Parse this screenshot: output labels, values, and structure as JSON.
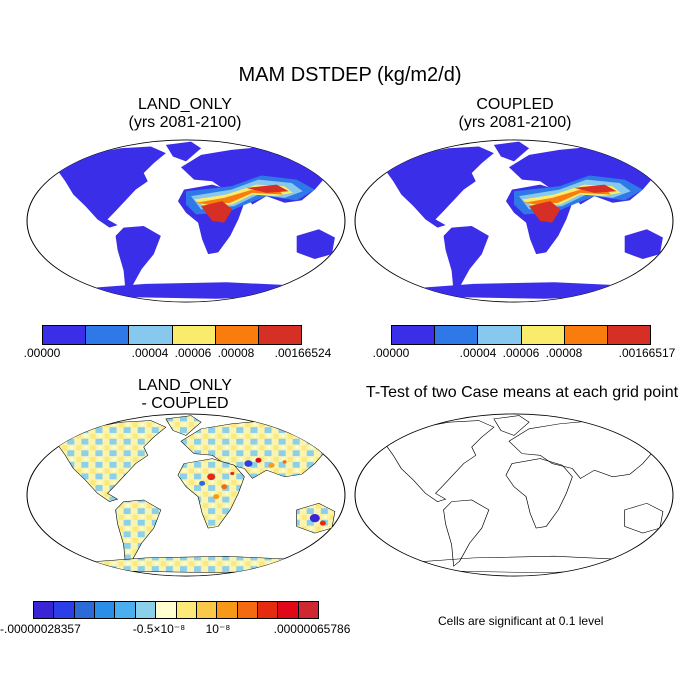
{
  "main_title": "MAM DSTDEP (kg/m2/d)",
  "panels": [
    {
      "title1": "LAND_ONLY",
      "title2": "(yrs 2081-2100)"
    },
    {
      "title1": "COUPLED",
      "title2": "(yrs 2081-2100)"
    },
    {
      "title1": "LAND_ONLY",
      "title2": "- COUPLED"
    },
    {
      "title1": "T-Test of two Case means at each grid point"
    }
  ],
  "colorbar1": {
    "colors": [
      "#3b2ee8",
      "#2f78e8",
      "#86c8ee",
      "#f9ec6c",
      "#f97c0c",
      "#d62f26"
    ],
    "labels": [
      ".00000",
      ".00004",
      ".00006",
      ".00008",
      ".00166524"
    ]
  },
  "colorbar2": {
    "colors": [
      "#3b2ee8",
      "#2f78e8",
      "#86c8ee",
      "#f9ec6c",
      "#f97c0c",
      "#d62f26"
    ],
    "labels": [
      ".00000",
      ".00004",
      ".00006",
      ".00008",
      ".00166517"
    ]
  },
  "colorbar3": {
    "colors": [
      "#3a25d4",
      "#2a3fe8",
      "#2c6ad8",
      "#2a8ee8",
      "#4aaef0",
      "#8ccfe8",
      "#ffffd0",
      "#fde87a",
      "#fbc84a",
      "#f89818",
      "#f46a10",
      "#e62a10",
      "#e00818",
      "#d02830"
    ],
    "labels": [
      "-.00000028357",
      "-0.5×10⁻⁸",
      "10⁻⁸",
      ".00000065786"
    ]
  },
  "significance_note": "Cells are significant at 0.1 level"
}
